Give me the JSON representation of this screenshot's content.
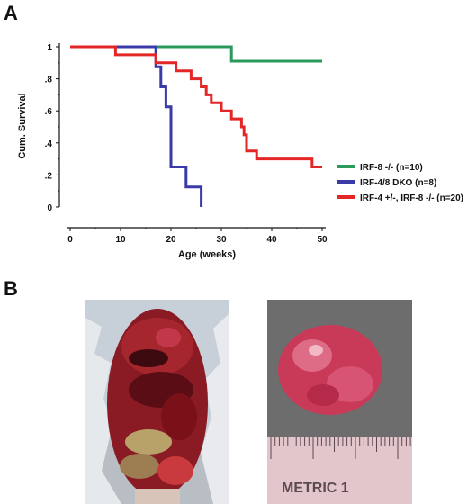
{
  "panels": {
    "a_label": "A",
    "b_label": "B"
  },
  "chart_data": {
    "type": "line",
    "step": true,
    "xlabel": "Age (weeks)",
    "ylabel": "Cum. Survival",
    "xlim": [
      0,
      50
    ],
    "ylim": [
      0,
      1
    ],
    "x_ticks": [
      0,
      10,
      20,
      30,
      40,
      50
    ],
    "y_ticks": [
      0,
      0.2,
      0.4,
      0.6,
      0.8,
      1
    ],
    "y_tick_labels": [
      "0",
      ".2",
      ".4",
      ".6",
      ".8",
      "1"
    ],
    "grid": false,
    "legend_position": "right",
    "series": [
      {
        "name": "IRF-8 -/- (n=10)",
        "color": "#2a9a5a",
        "points": [
          [
            0,
            1
          ],
          [
            32,
            1
          ],
          [
            32,
            0.91
          ],
          [
            50,
            0.91
          ]
        ]
      },
      {
        "name": "IRF-4/8 DKO (n=8)",
        "color": "#3a3aa8",
        "points": [
          [
            0,
            1
          ],
          [
            17,
            1
          ],
          [
            17,
            0.875
          ],
          [
            18,
            0.875
          ],
          [
            18,
            0.75
          ],
          [
            19,
            0.75
          ],
          [
            19,
            0.625
          ],
          [
            20,
            0.625
          ],
          [
            20,
            0.25
          ],
          [
            23,
            0.25
          ],
          [
            23,
            0.125
          ],
          [
            26,
            0.125
          ],
          [
            26,
            0
          ]
        ]
      },
      {
        "name": "IRF-4 +/-, IRF-8 -/- (n=20)",
        "color": "#e32626",
        "points": [
          [
            0,
            1
          ],
          [
            9,
            1
          ],
          [
            9,
            0.95
          ],
          [
            17,
            0.95
          ],
          [
            17,
            0.9
          ],
          [
            21,
            0.9
          ],
          [
            21,
            0.85
          ],
          [
            24,
            0.85
          ],
          [
            24,
            0.8
          ],
          [
            26,
            0.8
          ],
          [
            26,
            0.75
          ],
          [
            27,
            0.75
          ],
          [
            27,
            0.7
          ],
          [
            28,
            0.7
          ],
          [
            28,
            0.65
          ],
          [
            30,
            0.65
          ],
          [
            30,
            0.6
          ],
          [
            32,
            0.6
          ],
          [
            32,
            0.55
          ],
          [
            34,
            0.55
          ],
          [
            34,
            0.5
          ],
          [
            34.5,
            0.5
          ],
          [
            34.5,
            0.45
          ],
          [
            35,
            0.45
          ],
          [
            35,
            0.35
          ],
          [
            37,
            0.35
          ],
          [
            37,
            0.3
          ],
          [
            48,
            0.3
          ],
          [
            48,
            0.25
          ],
          [
            50,
            0.25
          ]
        ]
      }
    ]
  },
  "photos": {
    "left": {
      "subject": "dissected-mouse-abdomen",
      "bg": "#c9d3dc"
    },
    "right": {
      "subject": "excised-tumor-with-ruler",
      "bg": "#6f6f6f",
      "ruler_text": "METRIC 1"
    }
  }
}
